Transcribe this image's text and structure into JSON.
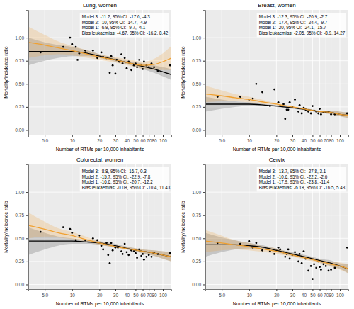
{
  "chart_data": [
    {
      "type": "scatter",
      "title": "Lung, women",
      "x_label": "Number of RTMs per 10,000 inhabitants",
      "y_label": "Mortality/incidence ratio",
      "annotation": [
        "Model 3: -11.2, 95% CI: -17.6, -4.3",
        "Model 2: -10, 95% CI: -14.7, -4.9",
        "Model 1: -6.9, 95% CI: -9.7, -4.1",
        "Bias leukaemias: -4.67, 95% CI: -16.2, 8.42"
      ],
      "log": "x",
      "grid": true,
      "marker": "circle",
      "xlim": [
        3.3,
        124
      ],
      "ylim": [
        -0.05,
        1.3
      ],
      "xticks": [
        {
          "value": 5,
          "label": "5.0"
        },
        10,
        20,
        30,
        40,
        50,
        60,
        70,
        80,
        100
      ],
      "yticks": [
        {
          "value": 0,
          "label": "0.00"
        },
        {
          "value": 0.25,
          "label": "0.25"
        },
        {
          "value": 0.5,
          "label": "0.50"
        },
        {
          "value": 0.75,
          "label": "0.75"
        },
        {
          "value": 1,
          "label": "1.00"
        }
      ],
      "x": [
        4.5,
        8,
        9.5,
        10,
        11,
        11.5,
        12,
        14,
        17,
        19,
        21,
        22,
        24,
        26,
        27,
        28,
        30,
        31,
        33,
        35,
        36,
        38,
        40,
        42,
        45,
        48,
        50,
        52,
        55,
        58,
        60,
        62,
        66,
        70,
        75,
        80,
        88,
        120
      ],
      "values": [
        0.84,
        0.9,
        1.0,
        0.93,
        0.9,
        0.76,
        0.83,
        0.86,
        0.86,
        0.78,
        0.84,
        0.79,
        0.78,
        0.62,
        0.8,
        0.7,
        0.61,
        0.76,
        0.74,
        0.82,
        0.72,
        0.78,
        0.67,
        0.74,
        0.65,
        0.7,
        0.72,
        0.68,
        0.76,
        0.7,
        0.66,
        0.74,
        0.7,
        0.68,
        0.72,
        0.68,
        0.64,
        0.7
      ],
      "fits": [
        {
          "color": "#000000",
          "line_style": "solid",
          "x": [
            3.3,
            5,
            7,
            10,
            15,
            20,
            30,
            45,
            60,
            80,
            100,
            124
          ],
          "values": [
            0.85,
            0.85,
            0.85,
            0.85,
            0.83,
            0.8,
            0.76,
            0.72,
            0.69,
            0.66,
            0.63,
            0.6
          ],
          "lower": [
            0.7,
            0.75,
            0.78,
            0.8,
            0.8,
            0.78,
            0.74,
            0.7,
            0.66,
            0.62,
            0.58,
            0.54
          ],
          "upper": [
            1.0,
            0.95,
            0.92,
            0.9,
            0.86,
            0.82,
            0.78,
            0.74,
            0.72,
            0.7,
            0.68,
            0.66
          ]
        },
        {
          "color": "#f0a030",
          "line_style": "solid",
          "x": [
            3.3,
            5,
            7,
            10,
            15,
            20,
            30,
            45,
            60,
            80,
            100,
            124
          ],
          "values": [
            0.95,
            0.92,
            0.89,
            0.86,
            0.82,
            0.79,
            0.76,
            0.72,
            0.7,
            0.71,
            0.74,
            0.78
          ],
          "lower": [
            0.78,
            0.81,
            0.82,
            0.81,
            0.78,
            0.76,
            0.73,
            0.69,
            0.66,
            0.65,
            0.65,
            0.65
          ],
          "upper": [
            1.12,
            1.03,
            0.96,
            0.91,
            0.86,
            0.82,
            0.79,
            0.76,
            0.74,
            0.77,
            0.83,
            0.91
          ]
        }
      ]
    },
    {
      "type": "scatter",
      "title": "Breast, women",
      "x_label": "Number of RTMs per 10,000 inhabitants",
      "y_label": "Mortality/incidence ratio",
      "annotation": [
        "Model 3: -12.3, 95% CI: -20.9, -2.7",
        "Model 2: -17.4, 95% CI: -24.4, -9.7",
        "Model 1: -20, 95% CI: -24.1, -15.7",
        "Bias leukaemias: -2.05, 95% CI: -8.9, 14.27"
      ],
      "log": "x",
      "grid": true,
      "marker": "circle",
      "xlim": [
        3.3,
        124
      ],
      "ylim": [
        -0.05,
        1.3
      ],
      "xticks": [
        {
          "value": 5,
          "label": "5.0"
        },
        10,
        20,
        30,
        40,
        50,
        60,
        70,
        80,
        100
      ],
      "yticks": [
        {
          "value": 0,
          "label": "0.00"
        },
        {
          "value": 0.25,
          "label": "0.25"
        },
        {
          "value": 0.5,
          "label": "0.50"
        },
        {
          "value": 0.75,
          "label": "0.75"
        },
        {
          "value": 1,
          "label": "1.00"
        }
      ],
      "x": [
        4.5,
        8,
        10,
        11,
        12,
        14,
        17,
        19,
        21,
        22,
        24,
        25,
        26,
        27,
        28,
        30,
        32,
        35,
        36,
        38,
        40,
        42,
        45,
        48,
        50,
        52,
        55,
        58,
        60,
        62,
        66,
        70,
        75,
        80,
        88,
        120
      ],
      "values": [
        0.36,
        0.36,
        0.33,
        0.34,
        0.5,
        0.41,
        0.26,
        0.44,
        0.3,
        0.26,
        0.28,
        0.12,
        0.22,
        0.22,
        0.3,
        0.25,
        0.33,
        0.2,
        0.27,
        0.18,
        0.24,
        0.22,
        0.2,
        0.18,
        0.26,
        0.21,
        0.2,
        0.18,
        0.23,
        0.17,
        0.19,
        0.19,
        0.2,
        0.17,
        0.17,
        0.18
      ],
      "fits": [
        {
          "color": "#000000",
          "line_style": "solid",
          "x": [
            3.3,
            5,
            7,
            10,
            15,
            20,
            30,
            45,
            60,
            80,
            100,
            124
          ],
          "values": [
            0.28,
            0.28,
            0.28,
            0.28,
            0.27,
            0.26,
            0.24,
            0.22,
            0.2,
            0.19,
            0.17,
            0.16
          ],
          "lower": [
            0.2,
            0.23,
            0.25,
            0.26,
            0.26,
            0.25,
            0.23,
            0.21,
            0.19,
            0.17,
            0.15,
            0.13
          ],
          "upper": [
            0.36,
            0.33,
            0.31,
            0.3,
            0.28,
            0.27,
            0.25,
            0.23,
            0.21,
            0.21,
            0.2,
            0.19
          ]
        },
        {
          "color": "#f0a030",
          "line_style": "solid",
          "x": [
            3.3,
            5,
            7,
            10,
            15,
            20,
            30,
            45,
            60,
            80,
            100,
            124
          ],
          "values": [
            0.39,
            0.37,
            0.35,
            0.33,
            0.3,
            0.28,
            0.25,
            0.22,
            0.2,
            0.19,
            0.17,
            0.16
          ],
          "lower": [
            0.3,
            0.31,
            0.31,
            0.3,
            0.28,
            0.27,
            0.24,
            0.21,
            0.19,
            0.17,
            0.15,
            0.13
          ],
          "upper": [
            0.48,
            0.43,
            0.39,
            0.36,
            0.32,
            0.29,
            0.26,
            0.23,
            0.21,
            0.21,
            0.2,
            0.19
          ]
        }
      ]
    },
    {
      "type": "scatter",
      "title": "Colorectal, women",
      "x_label": "Number of RTMs per 10,000 inhabitants",
      "y_label": "Mortality/incidence ratio",
      "annotation": [
        "Model 3: -8.8, 95% CI: -16.7, 0.3",
        "Model 2: -15.7, 95% CI: -22.9, -7.8",
        "Model 1: -16.6, 95% CI: -20.7, -12.2",
        "Bias leukaemias: -0.08, 95% CI: -10.4, 11.43"
      ],
      "log": "x",
      "grid": true,
      "marker": "circle",
      "xlim": [
        3.3,
        124
      ],
      "ylim": [
        -0.05,
        1.3
      ],
      "xticks": [
        {
          "value": 5,
          "label": "5.0"
        },
        10,
        20,
        30,
        40,
        50,
        60,
        70,
        80,
        100
      ],
      "yticks": [
        {
          "value": 0,
          "label": "0.00"
        },
        {
          "value": 0.25,
          "label": "0.25"
        },
        {
          "value": 0.5,
          "label": "0.50"
        },
        {
          "value": 0.75,
          "label": "0.75"
        },
        {
          "value": 1,
          "label": "1.00"
        }
      ],
      "x": [
        4.5,
        8,
        9.5,
        10,
        11,
        12,
        14,
        17,
        19,
        21,
        22,
        24,
        25,
        26,
        27,
        28,
        30,
        32,
        35,
        36,
        38,
        40,
        42,
        45,
        48,
        50,
        52,
        55,
        58,
        60,
        62,
        66,
        70,
        75,
        80,
        88,
        120
      ],
      "values": [
        0.57,
        0.62,
        0.6,
        0.56,
        0.48,
        0.53,
        0.48,
        0.5,
        0.48,
        0.42,
        0.38,
        0.45,
        0.32,
        0.23,
        0.45,
        0.37,
        0.4,
        0.4,
        0.36,
        0.33,
        0.44,
        0.35,
        0.32,
        0.37,
        0.36,
        0.34,
        0.29,
        0.38,
        0.31,
        0.33,
        0.27,
        0.3,
        0.32,
        0.3,
        0.34,
        0.33,
        0.34
      ],
      "fits": [
        {
          "color": "#000000",
          "line_style": "solid",
          "x": [
            3.3,
            5,
            7,
            10,
            15,
            20,
            30,
            45,
            60,
            80,
            100,
            124
          ],
          "values": [
            0.47,
            0.47,
            0.47,
            0.47,
            0.46,
            0.45,
            0.42,
            0.38,
            0.36,
            0.34,
            0.32,
            0.3
          ],
          "lower": [
            0.32,
            0.38,
            0.42,
            0.44,
            0.44,
            0.43,
            0.4,
            0.37,
            0.34,
            0.31,
            0.28,
            0.25
          ],
          "upper": [
            0.62,
            0.56,
            0.52,
            0.5,
            0.48,
            0.47,
            0.44,
            0.4,
            0.38,
            0.37,
            0.36,
            0.35
          ]
        },
        {
          "color": "#f0a030",
          "line_style": "solid",
          "x": [
            3.3,
            5,
            7,
            10,
            15,
            20,
            30,
            45,
            60,
            80,
            100,
            124
          ],
          "values": [
            0.64,
            0.6,
            0.56,
            0.53,
            0.48,
            0.45,
            0.41,
            0.38,
            0.36,
            0.34,
            0.32,
            0.3
          ],
          "lower": [
            0.5,
            0.52,
            0.51,
            0.49,
            0.46,
            0.43,
            0.4,
            0.37,
            0.34,
            0.31,
            0.28,
            0.25
          ],
          "upper": [
            0.78,
            0.68,
            0.61,
            0.57,
            0.51,
            0.47,
            0.43,
            0.4,
            0.38,
            0.37,
            0.36,
            0.35
          ]
        }
      ]
    },
    {
      "type": "scatter",
      "title": "Cervix",
      "x_label": "Number of RTMs per 10,000 inhabitants",
      "y_label": "Mortality/incidence ratio",
      "annotation": [
        "Model 3: -13.7, 95% CI: -27.8, 3.1",
        "Model 2: -10.6, 95% CI: -22.2, -2.6",
        "Model 1: -17.9, 95% CI: -23.8, -11.4",
        "Bias leukaemias: -6.18, 95% CI: -16.5, 5.43"
      ],
      "log": "x",
      "grid": true,
      "marker": "circle",
      "xlim": [
        3.3,
        124
      ],
      "ylim": [
        -0.05,
        1.3
      ],
      "xticks": [
        {
          "value": 5,
          "label": "5.0"
        },
        10,
        20,
        30,
        40,
        50,
        60,
        70,
        80,
        100
      ],
      "yticks": [
        {
          "value": 0,
          "label": "0.00"
        },
        {
          "value": 0.25,
          "label": "0.25"
        },
        {
          "value": 0.5,
          "label": "0.50"
        },
        {
          "value": 0.75,
          "label": "0.75"
        },
        {
          "value": 1,
          "label": "1.00"
        }
      ],
      "x": [
        4.5,
        8,
        9.5,
        10,
        11,
        12,
        14,
        17,
        19,
        21,
        22,
        24,
        25,
        26,
        27,
        28,
        30,
        32,
        35,
        36,
        38,
        40,
        42,
        45,
        48,
        50,
        52,
        55,
        58,
        60,
        62,
        66,
        70,
        75,
        80,
        88,
        120
      ],
      "values": [
        0.45,
        0.44,
        0.42,
        0.47,
        0.4,
        0.45,
        0.37,
        0.36,
        0.33,
        0.4,
        0.38,
        0.35,
        0.3,
        0.33,
        0.38,
        0.28,
        0.32,
        0.35,
        0.25,
        0.33,
        0.23,
        0.36,
        0.28,
        0.15,
        0.2,
        0.06,
        0.22,
        0.18,
        0.25,
        0.19,
        0.16,
        0.22,
        0.2,
        0.15,
        0.16,
        0.18,
        0.4
      ],
      "fits": [
        {
          "color": "#000000",
          "line_style": "solid",
          "x": [
            3.3,
            5,
            7,
            10,
            15,
            20,
            30,
            45,
            60,
            80,
            100,
            124
          ],
          "values": [
            0.43,
            0.43,
            0.43,
            0.42,
            0.4,
            0.37,
            0.33,
            0.29,
            0.26,
            0.23,
            0.2,
            0.17
          ],
          "lower": [
            0.3,
            0.35,
            0.38,
            0.39,
            0.38,
            0.35,
            0.31,
            0.27,
            0.24,
            0.2,
            0.17,
            0.12
          ],
          "upper": [
            0.56,
            0.51,
            0.48,
            0.45,
            0.42,
            0.39,
            0.35,
            0.31,
            0.28,
            0.26,
            0.23,
            0.22
          ]
        },
        {
          "color": "#f0a030",
          "line_style": "solid",
          "x": [
            3.3,
            5,
            7,
            10,
            15,
            20,
            30,
            45,
            60,
            80,
            100,
            124
          ],
          "values": [
            0.47,
            0.45,
            0.43,
            0.41,
            0.38,
            0.36,
            0.32,
            0.28,
            0.25,
            0.22,
            0.2,
            0.17
          ],
          "lower": [
            0.35,
            0.37,
            0.38,
            0.37,
            0.35,
            0.33,
            0.3,
            0.26,
            0.23,
            0.19,
            0.16,
            0.12
          ],
          "upper": [
            0.59,
            0.53,
            0.48,
            0.45,
            0.41,
            0.39,
            0.34,
            0.3,
            0.27,
            0.25,
            0.24,
            0.22
          ]
        }
      ]
    }
  ]
}
